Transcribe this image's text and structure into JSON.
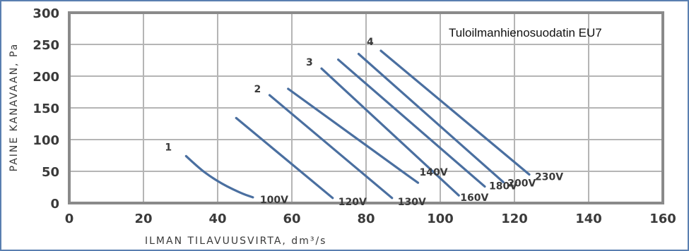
{
  "chart_data": {
    "type": "line",
    "title": "Tuloilmanhienosuodatin EU7",
    "xlabel": "ILMAN TILAVUUSVIRTA, dm³/s",
    "ylabel": "PAINE KANAVAAN, Pa",
    "xlim": [
      0,
      160
    ],
    "ylim": [
      0,
      300
    ],
    "xticks": [
      0,
      20,
      40,
      60,
      80,
      100,
      120,
      140,
      160
    ],
    "yticks": [
      0,
      50,
      100,
      150,
      200,
      250,
      300
    ],
    "grid": true,
    "colors": {
      "line": "#4a6fa0",
      "grid": "#b5b5b5",
      "frame": "#8a8a8a",
      "border": "#5a7fb0",
      "text": "#3a3a3a"
    },
    "curve_labels": [
      "1",
      "2",
      "3",
      "4"
    ],
    "series": [
      {
        "name": "100V",
        "points": [
          [
            31.5,
            74
          ],
          [
            35,
            55
          ],
          [
            38,
            42
          ],
          [
            41,
            31
          ],
          [
            44,
            22
          ],
          [
            47,
            14
          ],
          [
            49.5,
            9
          ]
        ]
      },
      {
        "name": "120V",
        "points": [
          [
            45,
            134
          ],
          [
            71,
            8
          ]
        ]
      },
      {
        "name": "130V",
        "points": [
          [
            54,
            170
          ],
          [
            87,
            8
          ]
        ]
      },
      {
        "name": "140V",
        "points": [
          [
            59,
            180
          ],
          [
            88,
            57
          ],
          [
            94,
            32
          ]
        ]
      },
      {
        "name": "160V",
        "points": [
          [
            68,
            212
          ],
          [
            105,
            12
          ]
        ]
      },
      {
        "name": "180V",
        "points": [
          [
            72.5,
            226
          ],
          [
            112,
            26
          ]
        ]
      },
      {
        "name": "200V",
        "points": [
          [
            78,
            235
          ],
          [
            117,
            33
          ]
        ]
      },
      {
        "name": "230V",
        "points": [
          [
            84,
            240
          ],
          [
            124,
            45
          ]
        ]
      }
    ]
  }
}
